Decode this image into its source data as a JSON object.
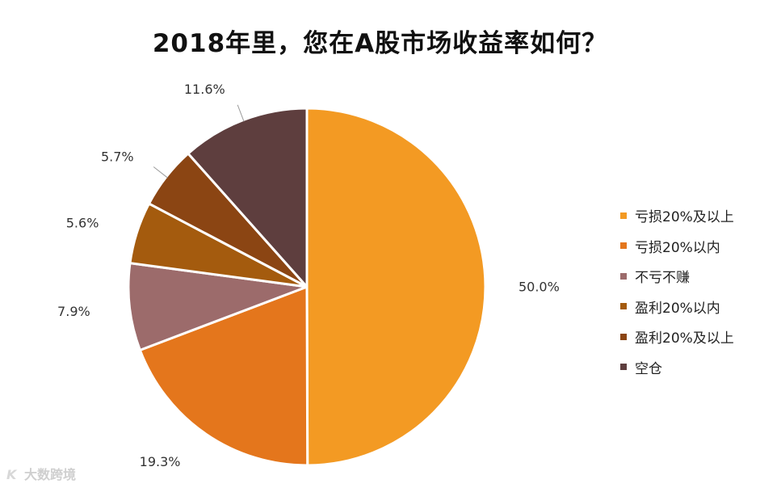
{
  "title": "2018年里，您在A股市场收益率如何？",
  "watermark": {
    "logo": "K",
    "text": "大数跨境"
  },
  "chart_data": {
    "type": "pie",
    "title": "2018年里，您在A股市场收益率如何？",
    "start_angle_deg": 0,
    "direction": "clockwise",
    "legend_position": "right",
    "slices": [
      {
        "label": "亏损20%及以上",
        "value": 50.0,
        "value_label": "50.0%",
        "color": "#F39A23"
      },
      {
        "label": "亏损20%以内",
        "value": 19.3,
        "value_label": "19.3%",
        "color": "#E4761C"
      },
      {
        "label": "不亏不赚",
        "value": 7.9,
        "value_label": "7.9%",
        "color": "#9C6B6B"
      },
      {
        "label": "盈利20%以内",
        "value": 5.6,
        "value_label": "5.6%",
        "color": "#A45B0E"
      },
      {
        "label": "盈利20%及以上",
        "value": 5.7,
        "value_label": "5.7%",
        "color": "#8B4513"
      },
      {
        "label": "空仓",
        "value": 11.6,
        "value_label": "11.6%",
        "color": "#5E3E3E"
      }
    ]
  }
}
